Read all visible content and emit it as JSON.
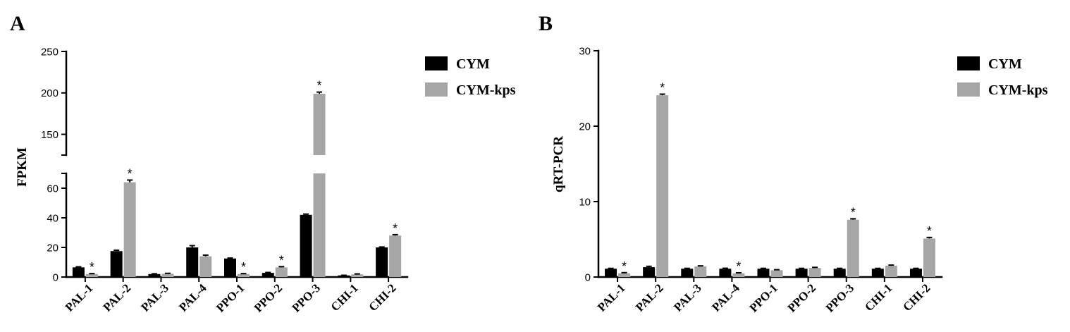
{
  "chart_data": [
    {
      "panel_label": "A",
      "type": "bar",
      "categories": [
        "PAL-1",
        "PAL-2",
        "PAL-3",
        "PAL-4",
        "PPO-1",
        "PPO-2",
        "PPO-3",
        "CHI-1",
        "CHI-2"
      ],
      "series": [
        {
          "name": "CYM",
          "color": "#000000",
          "values": [
            6.5,
            17.5,
            2.0,
            20.0,
            12.5,
            2.8,
            42.0,
            1.1,
            20.0
          ],
          "errors": [
            0.4,
            0.6,
            0.2,
            1.2,
            0.3,
            0.3,
            0.5,
            0.1,
            0.3
          ],
          "significant": [
            false,
            false,
            false,
            false,
            false,
            false,
            false,
            false,
            false
          ]
        },
        {
          "name": "CYM-kps",
          "color": "#a6a6a6",
          "values": [
            2.0,
            64.0,
            2.2,
            14.0,
            2.0,
            6.5,
            199.0,
            1.8,
            28.0
          ],
          "errors": [
            0.3,
            1.5,
            0.3,
            0.8,
            0.3,
            0.5,
            2.0,
            0.3,
            0.6
          ],
          "significant": [
            true,
            true,
            false,
            false,
            true,
            true,
            true,
            false,
            true
          ]
        }
      ],
      "significance_marker": "*",
      "ylabel": "FPKM",
      "ylim": [
        0,
        250
      ],
      "y_axis_segments": [
        [
          0,
          70
        ],
        [
          125,
          250
        ]
      ],
      "yticks": [
        0,
        20,
        40,
        60,
        150,
        200,
        250
      ],
      "grid": false,
      "legend_position": "right"
    },
    {
      "panel_label": "B",
      "type": "bar",
      "categories": [
        "PAL-1",
        "PAL-2",
        "PAL-3",
        "PAL-4",
        "PPO-1",
        "PPO-2",
        "PPO-3",
        "CHI-1",
        "CHI-2"
      ],
      "series": [
        {
          "name": "CYM",
          "color": "#000000",
          "values": [
            1.1,
            1.3,
            1.1,
            1.1,
            1.1,
            1.1,
            1.1,
            1.1,
            1.1
          ],
          "errors": [
            0.05,
            0.12,
            0.05,
            0.06,
            0.05,
            0.05,
            0.05,
            0.05,
            0.05
          ],
          "significant": [
            false,
            false,
            false,
            false,
            false,
            false,
            false,
            false,
            false
          ]
        },
        {
          "name": "CYM-kps",
          "color": "#a6a6a6",
          "values": [
            0.5,
            24.1,
            1.4,
            0.5,
            0.9,
            1.2,
            7.6,
            1.5,
            5.1
          ],
          "errors": [
            0.08,
            0.15,
            0.08,
            0.06,
            0.07,
            0.08,
            0.12,
            0.08,
            0.15
          ],
          "significant": [
            true,
            true,
            false,
            true,
            false,
            false,
            true,
            false,
            true
          ]
        }
      ],
      "significance_marker": "*",
      "ylabel": "qRT-PCR",
      "ylim": [
        0,
        30
      ],
      "yticks": [
        0,
        10,
        20,
        30
      ],
      "grid": false,
      "legend_position": "right"
    }
  ]
}
